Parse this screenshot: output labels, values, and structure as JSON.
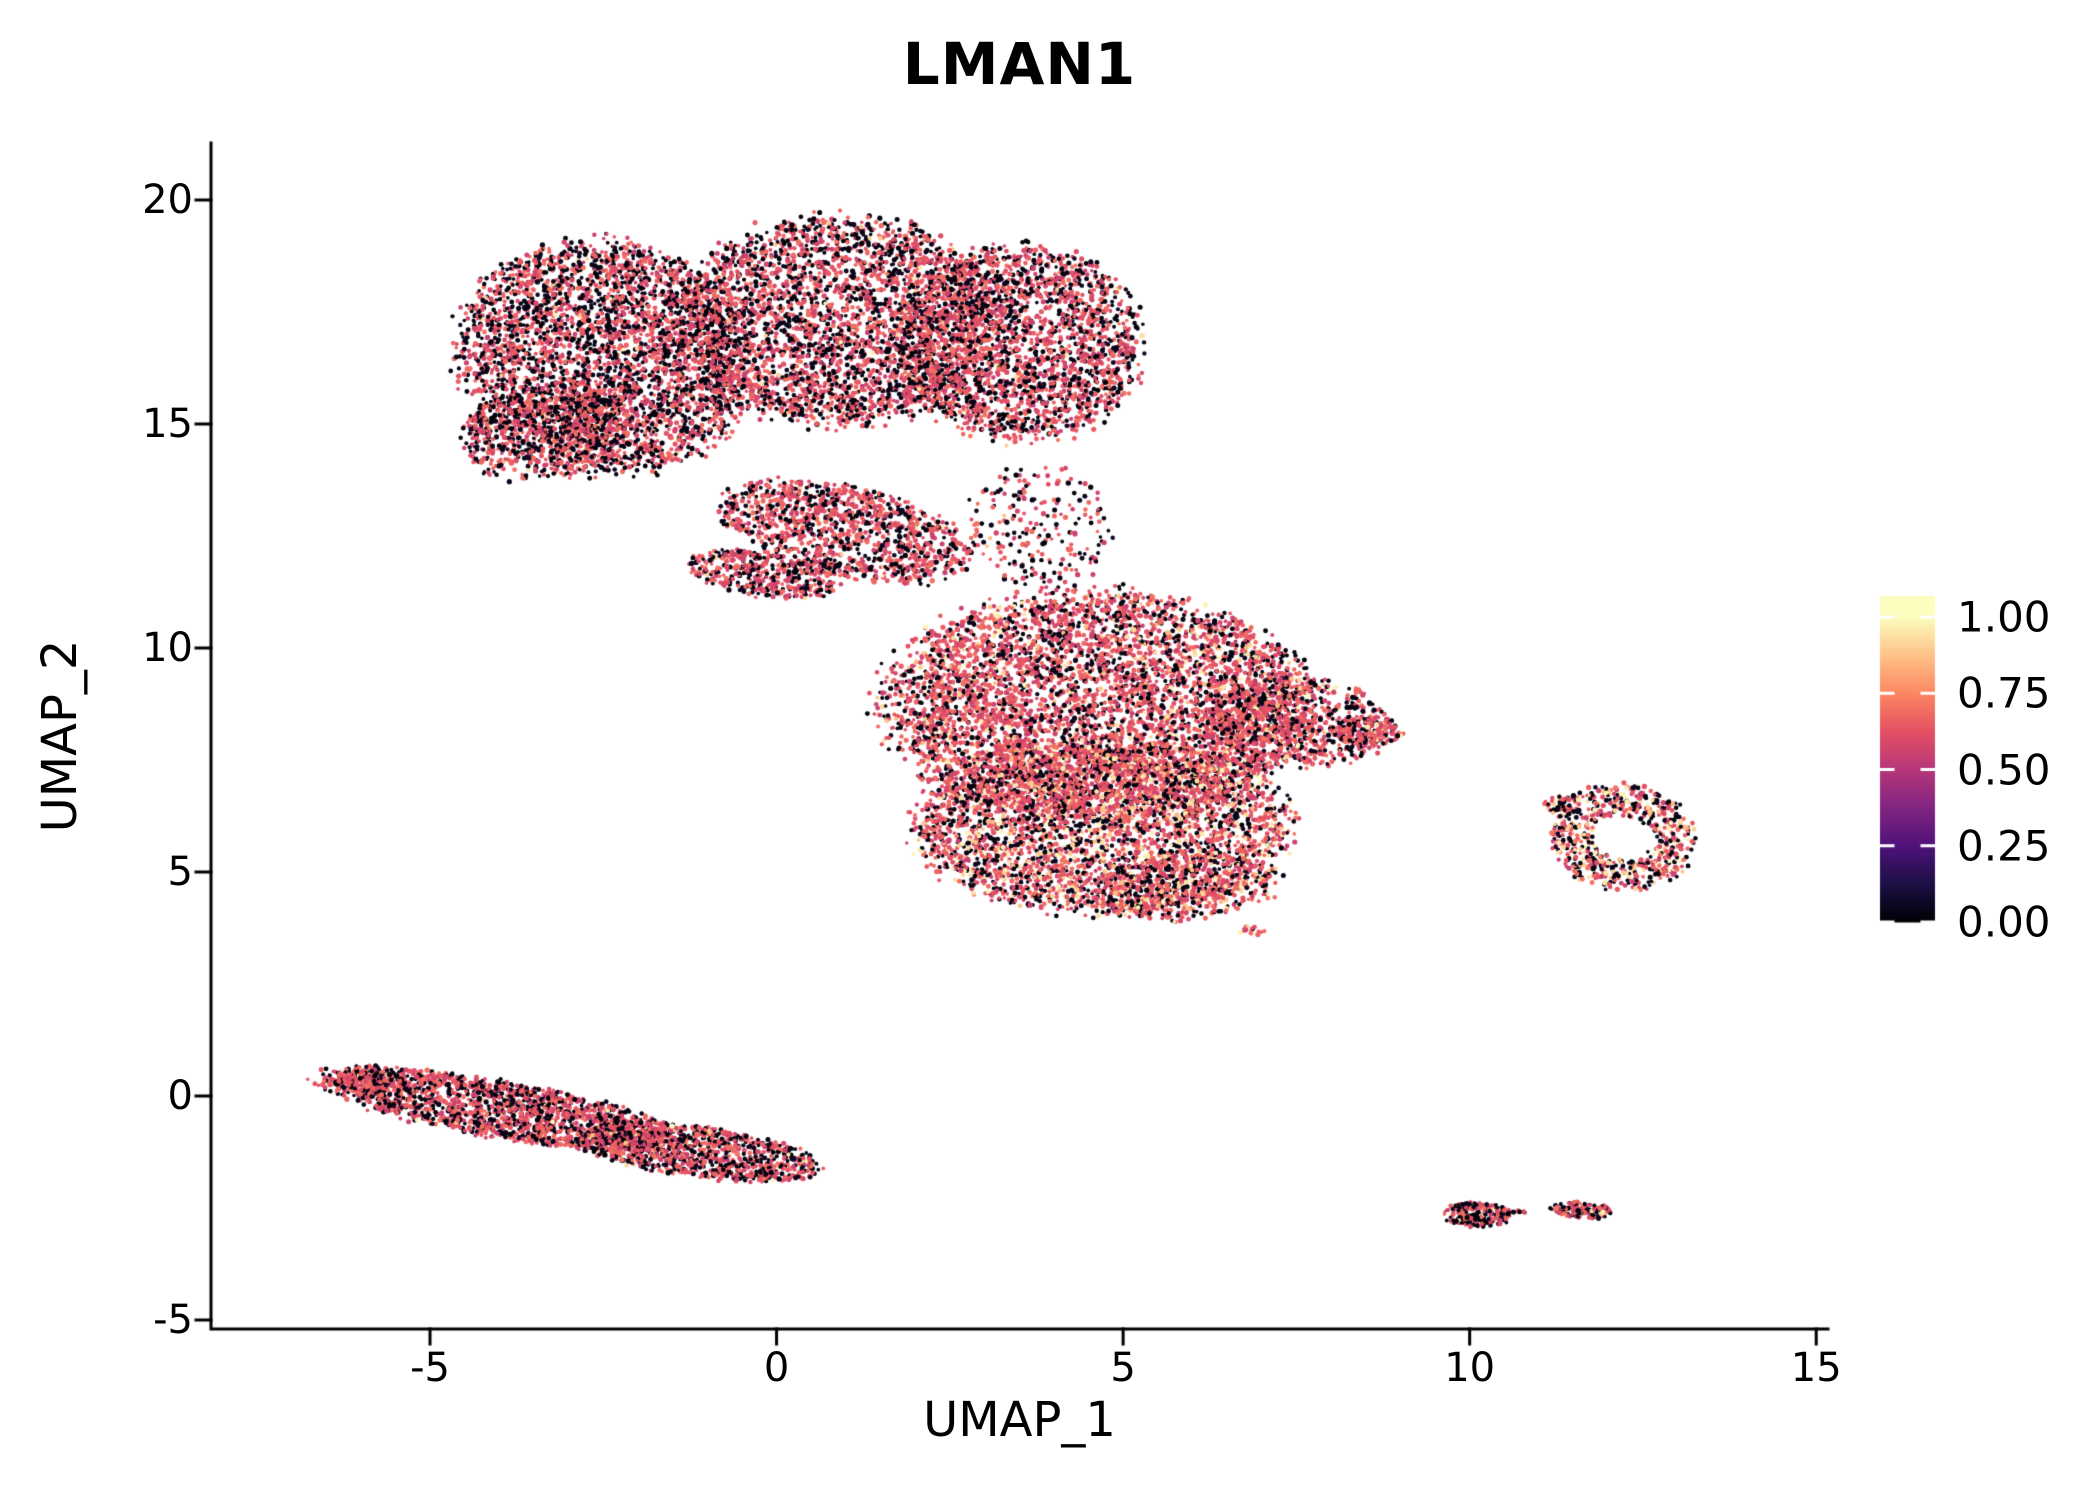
{
  "chart_data": {
    "type": "scatter",
    "title": "LMAN1",
    "xlabel": "UMAP_1",
    "ylabel": "UMAP_2",
    "xlim": [
      -8.16,
      15.17
    ],
    "ylim": [
      -5.2,
      21.27
    ],
    "grid": false,
    "x_ticks": [
      {
        "value": -5,
        "label": "-5"
      },
      {
        "value": 0,
        "label": "0"
      },
      {
        "value": 5,
        "label": "5"
      },
      {
        "value": 10,
        "label": "10"
      },
      {
        "value": 15,
        "label": "15"
      }
    ],
    "y_ticks": [
      {
        "value": 20,
        "label": "20"
      },
      {
        "value": 15,
        "label": "15"
      },
      {
        "value": 10,
        "label": "10"
      },
      {
        "value": 5,
        "label": "5"
      },
      {
        "value": 0,
        "label": "0"
      },
      {
        "value": -5,
        "label": "-5"
      }
    ],
    "colorbar": {
      "position": "right",
      "ticks": [
        {
          "value": 1.0,
          "label": "1.00"
        },
        {
          "value": 0.75,
          "label": "0.75"
        },
        {
          "value": 0.5,
          "label": "0.50"
        },
        {
          "value": 0.25,
          "label": "0.25"
        },
        {
          "value": 0.0,
          "label": "0.00"
        }
      ]
    },
    "colormap_stops": [
      "#000004",
      "#1c1044",
      "#4f127b",
      "#812581",
      "#b5367a",
      "#e55064",
      "#fb8761",
      "#fec287",
      "#fcfdbf"
    ],
    "axis_color": "#000000",
    "point": {
      "radius": 2.2,
      "radius_jitter": 0.9
    },
    "seed": 1337,
    "clusters": [
      {
        "name": "top-left-lobe",
        "cx": -2.5,
        "cy": 16.5,
        "rx": 2.05,
        "ry": 2.6,
        "rot": 12,
        "n": 3600,
        "mix": {
          "low": 0.44,
          "high": 0.01
        }
      },
      {
        "name": "top-mid-lobe",
        "cx": 0.9,
        "cy": 17.3,
        "rx": 2.3,
        "ry": 2.3,
        "rot": 0,
        "n": 3200,
        "mix": {
          "low": 0.4,
          "high": 0.01
        }
      },
      {
        "name": "top-right-lobe",
        "cx": 3.5,
        "cy": 16.8,
        "rx": 1.75,
        "ry": 2.15,
        "rot": 0,
        "n": 2300,
        "mix": {
          "low": 0.38,
          "high": 0.012
        }
      },
      {
        "name": "top-left-bulge",
        "cx": -3.3,
        "cy": 14.8,
        "rx": 1.3,
        "ry": 1.0,
        "rot": 20,
        "n": 700,
        "mix": {
          "low": 0.45,
          "high": 0.005
        }
      },
      {
        "name": "bridge-diagonal",
        "cx": 1.0,
        "cy": 12.6,
        "rx": 1.9,
        "ry": 0.95,
        "rot": -22,
        "n": 1150,
        "mix": {
          "low": 0.34,
          "high": 0.01
        }
      },
      {
        "name": "bridge-strip",
        "cx": -0.15,
        "cy": 11.65,
        "rx": 1.15,
        "ry": 0.5,
        "rot": -12,
        "n": 430,
        "mix": {
          "low": 0.33,
          "high": 0.01
        }
      },
      {
        "name": "bridge-sparse",
        "cx": 3.8,
        "cy": 12.7,
        "rx": 1.05,
        "ry": 1.35,
        "rot": 0,
        "n": 230,
        "mix": {
          "low": 0.38,
          "high": 0.01
        }
      },
      {
        "name": "central-upper",
        "cx": 4.6,
        "cy": 8.7,
        "rx": 3.05,
        "ry": 2.55,
        "rot": 0,
        "n": 5200,
        "mix": {
          "low": 0.27,
          "high": 0.07
        }
      },
      {
        "name": "central-lower",
        "cx": 4.7,
        "cy": 6.0,
        "rx": 2.7,
        "ry": 1.9,
        "rot": 0,
        "n": 3300,
        "mix": {
          "low": 0.27,
          "high": 0.14
        }
      },
      {
        "name": "central-right-lobe",
        "cx": 7.5,
        "cy": 8.35,
        "rx": 1.35,
        "ry": 1.0,
        "rot": -10,
        "n": 750,
        "mix": {
          "low": 0.3,
          "high": 0.05
        }
      },
      {
        "name": "central-right-tip",
        "cx": 8.55,
        "cy": 8.15,
        "rx": 0.5,
        "ry": 0.32,
        "rot": 0,
        "n": 130,
        "mix": {
          "low": 0.3,
          "high": 0.08
        }
      },
      {
        "name": "central-bottom-tail",
        "cx": 5.9,
        "cy": 4.65,
        "rx": 1.35,
        "ry": 0.7,
        "rot": 8,
        "n": 520,
        "mix": {
          "low": 0.3,
          "high": 0.14
        }
      },
      {
        "name": "outlier-dot",
        "cx": 6.85,
        "cy": 3.7,
        "rx": 0.18,
        "ry": 0.12,
        "rot": 0,
        "n": 16,
        "mix": {
          "low": 0.2,
          "high": 0.1
        }
      },
      {
        "name": "right-ring",
        "cx": 12.22,
        "cy": 5.78,
        "rx": 1.02,
        "ry": 1.18,
        "rot": 15,
        "n": 640,
        "inner": 0.42,
        "mix": {
          "low": 0.33,
          "high": 0.2
        }
      },
      {
        "name": "right-ring-satellite",
        "cx": 11.35,
        "cy": 6.5,
        "rx": 0.3,
        "ry": 0.22,
        "rot": 0,
        "n": 42,
        "mix": {
          "low": 0.4,
          "high": 0.15
        }
      },
      {
        "name": "lower-left-band",
        "cx": -4.0,
        "cy": -0.3,
        "rx": 2.65,
        "ry": 0.62,
        "rot": -15,
        "n": 1750,
        "mix": {
          "low": 0.38,
          "high": 0.015
        }
      },
      {
        "name": "lower-left-band-right",
        "cx": -1.15,
        "cy": -1.25,
        "rx": 1.75,
        "ry": 0.55,
        "rot": -12,
        "n": 1050,
        "mix": {
          "low": 0.38,
          "high": 0.02
        }
      },
      {
        "name": "lower-left-tip",
        "cx": -5.85,
        "cy": 0.32,
        "rx": 0.55,
        "ry": 0.3,
        "rot": -15,
        "n": 160,
        "mix": {
          "low": 0.4,
          "high": 0.01
        }
      },
      {
        "name": "bottom-blob-left",
        "cx": 10.1,
        "cy": -2.65,
        "rx": 0.48,
        "ry": 0.28,
        "rot": -5,
        "n": 240,
        "mix": {
          "low": 0.42,
          "high": 0.04
        }
      },
      {
        "name": "bottom-blob-right",
        "cx": 11.62,
        "cy": -2.55,
        "rx": 0.45,
        "ry": 0.17,
        "rot": -8,
        "n": 150,
        "mix": {
          "low": 0.4,
          "high": 0.05
        }
      },
      {
        "name": "bottom-dot",
        "cx": 10.72,
        "cy": -2.6,
        "rx": 0.09,
        "ry": 0.06,
        "rot": 0,
        "n": 8,
        "mix": {
          "low": 0.4,
          "high": 0.0
        }
      }
    ]
  }
}
